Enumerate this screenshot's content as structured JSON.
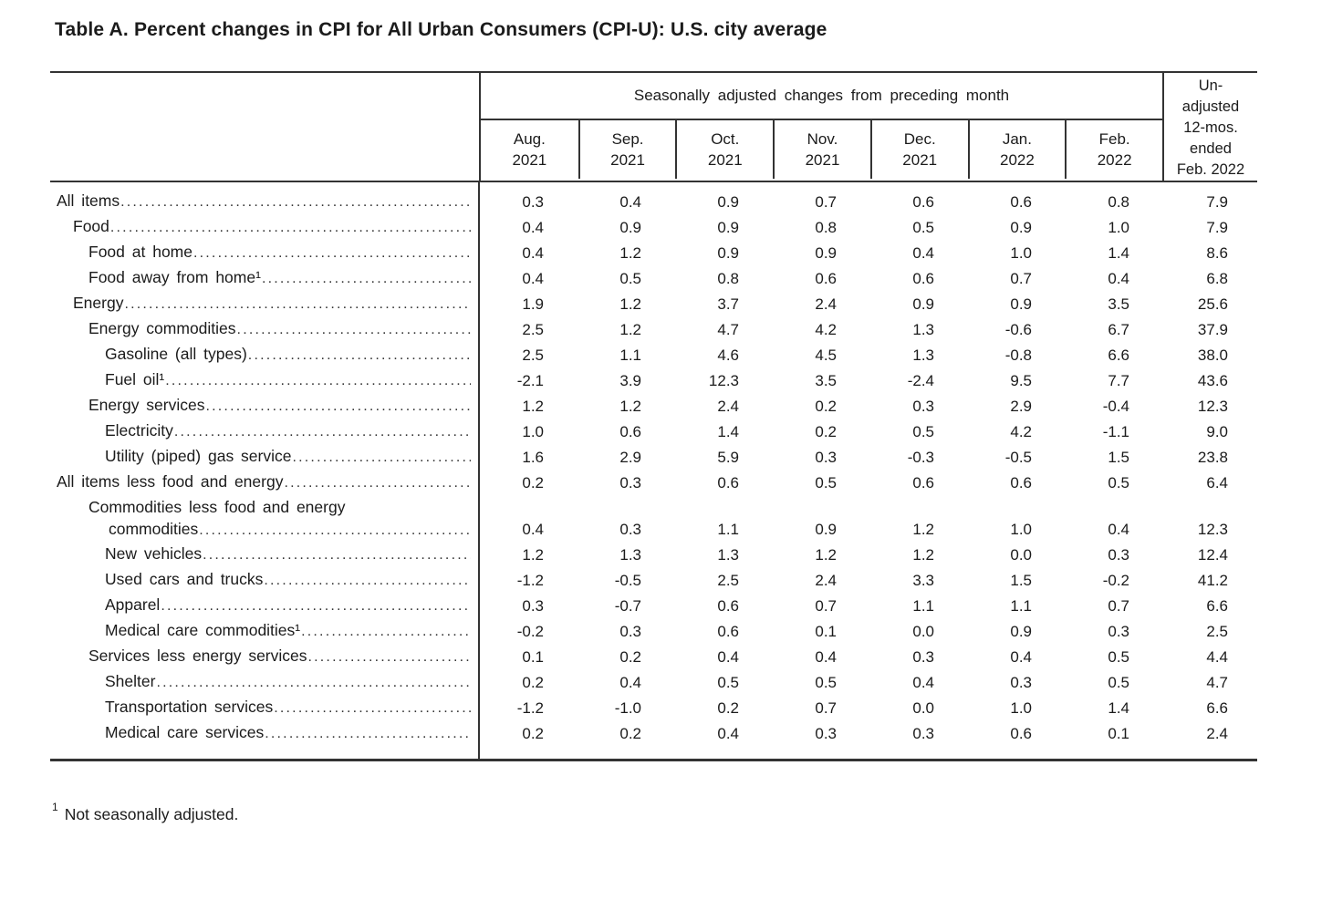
{
  "title": "Table A. Percent changes in CPI for All Urban Consumers (CPI-U): U.S. city average",
  "colors": {
    "rule": "#333333",
    "text": "#1b1b1b"
  },
  "table": {
    "group_header": "Seasonally adjusted changes from preceding month",
    "unadjusted_header": "Un-\nadjusted\n12-mos.\nended\nFeb. 2022",
    "month_columns": [
      {
        "month": "Aug.",
        "year": "2021"
      },
      {
        "month": "Sep.",
        "year": "2021"
      },
      {
        "month": "Oct.",
        "year": "2021"
      },
      {
        "month": "Nov.",
        "year": "2021"
      },
      {
        "month": "Dec.",
        "year": "2021"
      },
      {
        "month": "Jan.",
        "year": "2022"
      },
      {
        "month": "Feb.",
        "year": "2022"
      }
    ],
    "rows": [
      {
        "label": "All items",
        "indent": 0,
        "values": [
          "0.3",
          "0.4",
          "0.9",
          "0.7",
          "0.6",
          "0.6",
          "0.8",
          "7.9"
        ]
      },
      {
        "label": "Food",
        "indent": 1,
        "values": [
          "0.4",
          "0.9",
          "0.9",
          "0.8",
          "0.5",
          "0.9",
          "1.0",
          "7.9"
        ]
      },
      {
        "label": "Food at home",
        "indent": 2,
        "values": [
          "0.4",
          "1.2",
          "0.9",
          "0.9",
          "0.4",
          "1.0",
          "1.4",
          "8.6"
        ]
      },
      {
        "label": "Food away from home¹",
        "indent": 2,
        "values": [
          "0.4",
          "0.5",
          "0.8",
          "0.6",
          "0.6",
          "0.7",
          "0.4",
          "6.8"
        ]
      },
      {
        "label": "Energy",
        "indent": 1,
        "values": [
          "1.9",
          "1.2",
          "3.7",
          "2.4",
          "0.9",
          "0.9",
          "3.5",
          "25.6"
        ]
      },
      {
        "label": "Energy commodities",
        "indent": 2,
        "values": [
          "2.5",
          "1.2",
          "4.7",
          "4.2",
          "1.3",
          "-0.6",
          "6.7",
          "37.9"
        ]
      },
      {
        "label": "Gasoline (all types)",
        "indent": 3,
        "values": [
          "2.5",
          "1.1",
          "4.6",
          "4.5",
          "1.3",
          "-0.8",
          "6.6",
          "38.0"
        ]
      },
      {
        "label": "Fuel oil¹",
        "indent": 3,
        "values": [
          "-2.1",
          "3.9",
          "12.3",
          "3.5",
          "-2.4",
          "9.5",
          "7.7",
          "43.6"
        ]
      },
      {
        "label": "Energy services",
        "indent": 2,
        "values": [
          "1.2",
          "1.2",
          "2.4",
          "0.2",
          "0.3",
          "2.9",
          "-0.4",
          "12.3"
        ]
      },
      {
        "label": "Electricity",
        "indent": 3,
        "values": [
          "1.0",
          "0.6",
          "1.4",
          "0.2",
          "0.5",
          "4.2",
          "-1.1",
          "9.0"
        ]
      },
      {
        "label": "Utility (piped) gas service",
        "indent": 3,
        "values": [
          "1.6",
          "2.9",
          "5.9",
          "0.3",
          "-0.3",
          "-0.5",
          "1.5",
          "23.8"
        ]
      },
      {
        "label": "All items less food and energy",
        "indent": 0,
        "values": [
          "0.2",
          "0.3",
          "0.6",
          "0.5",
          "0.6",
          "0.6",
          "0.5",
          "6.4"
        ]
      },
      {
        "label": "Commodities less food and energy",
        "label2": "commodities",
        "indent": 2,
        "values": [
          "0.4",
          "0.3",
          "1.1",
          "0.9",
          "1.2",
          "1.0",
          "0.4",
          "12.3"
        ]
      },
      {
        "label": "New vehicles",
        "indent": 3,
        "values": [
          "1.2",
          "1.3",
          "1.3",
          "1.2",
          "1.2",
          "0.0",
          "0.3",
          "12.4"
        ]
      },
      {
        "label": "Used cars and trucks",
        "indent": 3,
        "values": [
          "-1.2",
          "-0.5",
          "2.5",
          "2.4",
          "3.3",
          "1.5",
          "-0.2",
          "41.2"
        ]
      },
      {
        "label": "Apparel",
        "indent": 3,
        "values": [
          "0.3",
          "-0.7",
          "0.6",
          "0.7",
          "1.1",
          "1.1",
          "0.7",
          "6.6"
        ]
      },
      {
        "label": "Medical care commodities¹",
        "indent": 3,
        "values": [
          "-0.2",
          "0.3",
          "0.6",
          "0.1",
          "0.0",
          "0.9",
          "0.3",
          "2.5"
        ]
      },
      {
        "label": "Services less energy services",
        "indent": 2,
        "values": [
          "0.1",
          "0.2",
          "0.4",
          "0.4",
          "0.3",
          "0.4",
          "0.5",
          "4.4"
        ]
      },
      {
        "label": "Shelter",
        "indent": 3,
        "values": [
          "0.2",
          "0.4",
          "0.5",
          "0.5",
          "0.4",
          "0.3",
          "0.5",
          "4.7"
        ]
      },
      {
        "label": "Transportation services",
        "indent": 3,
        "values": [
          "-1.2",
          "-1.0",
          "0.2",
          "0.7",
          "0.0",
          "1.0",
          "1.4",
          "6.6"
        ]
      },
      {
        "label": "Medical care services",
        "indent": 3,
        "values": [
          "0.2",
          "0.2",
          "0.4",
          "0.3",
          "0.3",
          "0.6",
          "0.1",
          "2.4"
        ]
      }
    ]
  },
  "footnote": {
    "marker": "1",
    "text": "Not seasonally adjusted."
  }
}
